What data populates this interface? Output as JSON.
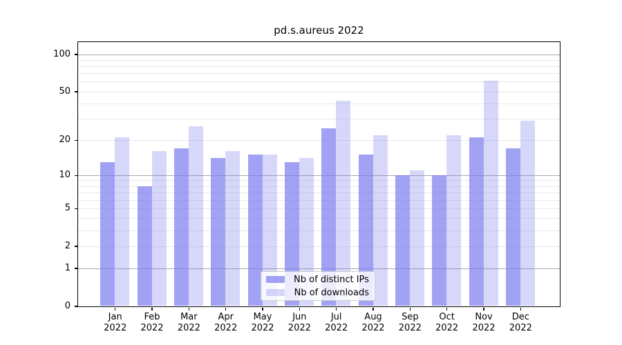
{
  "title": "pd.s.aureus 2022",
  "chart_data": {
    "type": "bar",
    "title": "pd.s.aureus 2022",
    "yscale": "symlog (log1p)",
    "ylim": [
      0,
      126
    ],
    "yticks": [
      100,
      50,
      20,
      10,
      5,
      2,
      1,
      0
    ],
    "ytick_labels": [
      "100",
      "50",
      "20",
      "10",
      "5",
      "2",
      "1",
      "0"
    ],
    "grid": {
      "major_at": [
        1,
        10,
        100
      ],
      "minor_at": [
        2,
        3,
        4,
        5,
        6,
        7,
        8,
        9,
        20,
        30,
        40,
        50,
        60,
        70,
        80,
        90
      ]
    },
    "categories": [
      "Jan",
      "Feb",
      "Mar",
      "Apr",
      "May",
      "Jun",
      "Jul",
      "Aug",
      "Sep",
      "Oct",
      "Nov",
      "Dec"
    ],
    "category_year": "2022",
    "series": [
      {
        "name": "Nb of distinct IPs",
        "color": "rgba(123,123,240,0.7)",
        "values": [
          13,
          8,
          17,
          14,
          15,
          13,
          25,
          15,
          10,
          10,
          21,
          17
        ]
      },
      {
        "name": "Nb of downloads",
        "color": "rgba(123,123,240,0.3)",
        "values": [
          21,
          16,
          26,
          16,
          15,
          14,
          42,
          22,
          11,
          22,
          61,
          29
        ]
      }
    ],
    "legend_position": "lower center inside plot"
  },
  "colors": {
    "axis": "#000000",
    "grid_major": "#a8a8a8",
    "grid_minor": "#e8e8e8",
    "legend_border": "#cccccc",
    "background": "#ffffff"
  }
}
